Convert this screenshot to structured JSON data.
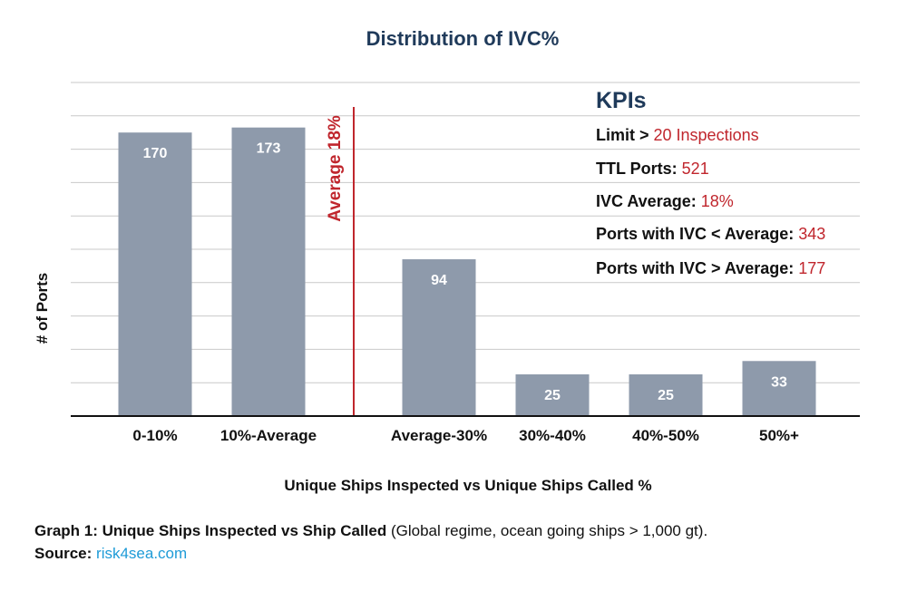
{
  "chart_data": {
    "type": "bar",
    "title": "Distribution of IVC%",
    "xlabel": "Unique Ships Inspected vs Unique Ships Called %",
    "ylabel": "# of Ports",
    "categories": [
      "0-10%",
      "10%-Average",
      "Average-30%",
      "30%-40%",
      "40%-50%",
      "50%+"
    ],
    "values": [
      170,
      173,
      94,
      25,
      25,
      33
    ],
    "ylim": [
      0,
      200
    ],
    "grid": true,
    "reference_line": {
      "label": "Average 18%",
      "position_between": [
        "10%-Average",
        "Average-30%"
      ],
      "color": "#c0262d"
    },
    "bar_color": "#8e9aab",
    "kpis": {
      "heading": "KPIs",
      "items": [
        {
          "label": "Limit >",
          "value": "20 Inspections"
        },
        {
          "label": "TTL Ports:",
          "value": "521"
        },
        {
          "label": "IVC Average:",
          "value": "18%"
        },
        {
          "label": "Ports with IVC < Average:",
          "value": "343"
        },
        {
          "label": "Ports with IVC > Average:",
          "value": "177"
        }
      ]
    }
  },
  "caption": {
    "bold": "Graph 1: Unique Ships Inspected vs Ship Called",
    "text": "(Global regime, ocean going ships > 1,000 gt).",
    "source_label": "Source:",
    "source_link": "risk4sea.com"
  }
}
